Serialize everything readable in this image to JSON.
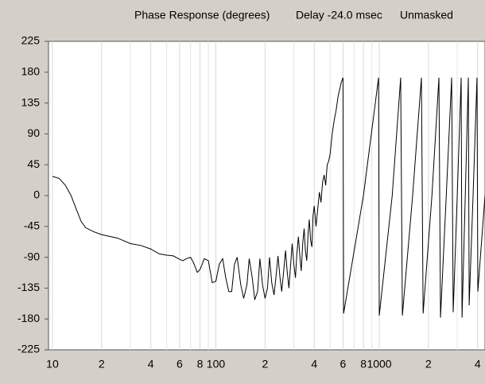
{
  "chart_data": {
    "type": "line",
    "title": "Phase Response (degrees)",
    "delay_label": "Delay -24.0 msec",
    "mask_label": "Unmasked",
    "xscale": "log",
    "grid": "x",
    "xlim": [
      9.46,
      4436
    ],
    "ylim": [
      -225,
      225
    ],
    "yticks": [
      225,
      180,
      135,
      90,
      45,
      0,
      -45,
      -90,
      -135,
      -180,
      -225
    ],
    "xticks": [
      10,
      {
        "value": 20,
        "label": "2"
      },
      {
        "value": 40,
        "label": "4"
      },
      {
        "value": 60,
        "label": "6"
      },
      {
        "value": 80,
        "label": "8"
      },
      100,
      {
        "value": 200,
        "label": "2"
      },
      {
        "value": 400,
        "label": "4"
      },
      {
        "value": 600,
        "label": "6"
      },
      {
        "value": 800,
        "label": "8"
      },
      1000,
      {
        "value": 2000,
        "label": "2"
      },
      {
        "value": 4000,
        "label": "4"
      }
    ],
    "xminorticks": [
      30,
      50,
      70,
      90,
      300,
      500,
      700,
      900,
      3000
    ],
    "color": "#000000",
    "x": [
      10,
      11,
      12,
      13,
      14,
      15,
      16,
      18,
      20,
      25,
      30,
      35,
      40,
      45,
      50,
      55,
      60,
      63,
      66,
      70,
      73,
      77,
      80,
      85,
      90,
      95,
      100,
      105,
      110,
      115,
      120,
      125,
      130,
      135,
      142,
      148,
      155,
      160,
      167,
      173,
      180,
      186,
      193,
      200,
      207,
      213,
      220,
      227,
      233,
      240,
      247,
      253,
      260,
      267,
      273,
      280,
      287,
      293,
      300,
      307,
      313,
      320,
      327,
      333,
      340,
      347,
      353,
      360,
      367,
      373,
      380,
      387,
      393,
      400,
      410,
      420,
      430,
      440,
      450,
      460,
      470,
      480,
      490,
      500,
      515,
      530,
      545,
      560,
      585,
      600,
      605,
      800,
      990,
      1000,
      1200,
      1352,
      1385,
      1600,
      1811,
      1855,
      2100,
      2318,
      2370,
      2570,
      2773,
      2834,
      3000,
      3170,
      3210,
      3360,
      3508,
      3550,
      3750,
      3963,
      4010,
      4436
    ],
    "values": [
      28,
      25,
      15,
      0,
      -20,
      -38,
      -47,
      -53,
      -57,
      -62,
      -70,
      -73,
      -78,
      -85,
      -87,
      -88,
      -93,
      -95,
      -92,
      -90,
      -98,
      -112,
      -108,
      -92,
      -95,
      -127,
      -125,
      -100,
      -92,
      -120,
      -140,
      -140,
      -100,
      -90,
      -130,
      -150,
      -130,
      -92,
      -120,
      -152,
      -140,
      -92,
      -130,
      -150,
      -135,
      -90,
      -128,
      -145,
      -120,
      -88,
      -120,
      -140,
      -110,
      -80,
      -110,
      -135,
      -100,
      -70,
      -100,
      -120,
      -85,
      -60,
      -90,
      -110,
      -70,
      -48,
      -80,
      -95,
      -55,
      -35,
      -65,
      -75,
      -30,
      -15,
      -45,
      -20,
      5,
      -10,
      20,
      30,
      15,
      45,
      50,
      60,
      90,
      110,
      125,
      145,
      165,
      172,
      -172,
      0,
      172,
      -175,
      0,
      172,
      -175,
      0,
      172,
      -172,
      0,
      172,
      -178,
      0,
      172,
      -170,
      0,
      172,
      -178,
      0,
      172,
      -160,
      0,
      172,
      -140,
      0
    ]
  }
}
